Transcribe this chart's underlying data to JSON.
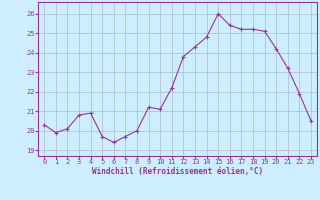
{
  "x": [
    0,
    1,
    2,
    3,
    4,
    5,
    6,
    7,
    8,
    9,
    10,
    11,
    12,
    13,
    14,
    15,
    16,
    17,
    18,
    19,
    20,
    21,
    22,
    23
  ],
  "y": [
    20.3,
    19.9,
    20.1,
    20.8,
    20.9,
    19.7,
    19.4,
    19.7,
    20.0,
    21.2,
    21.1,
    22.2,
    23.8,
    24.3,
    24.8,
    26.0,
    25.4,
    25.2,
    25.2,
    25.1,
    24.2,
    23.2,
    21.9,
    20.5
  ],
  "line_color": "#993399",
  "marker": "+",
  "bg_color": "#cceeff",
  "grid_color": "#aabbcc",
  "xlabel": "Windchill (Refroidissement éolien,°C)",
  "ylabel_ticks": [
    19,
    20,
    21,
    22,
    23,
    24,
    25,
    26
  ],
  "xlim": [
    -0.5,
    23.5
  ],
  "ylim": [
    18.7,
    26.6
  ],
  "xtick_labels": [
    "0",
    "1",
    "2",
    "3",
    "4",
    "5",
    "6",
    "7",
    "8",
    "9",
    "10",
    "11",
    "12",
    "13",
    "14",
    "15",
    "16",
    "17",
    "18",
    "19",
    "20",
    "21",
    "22",
    "23"
  ],
  "tick_color": "#993399",
  "label_color": "#993399",
  "spine_color": "#993399",
  "tick_fontsize": 5,
  "xlabel_fontsize": 5.5,
  "marker_size": 3,
  "line_width": 0.8
}
